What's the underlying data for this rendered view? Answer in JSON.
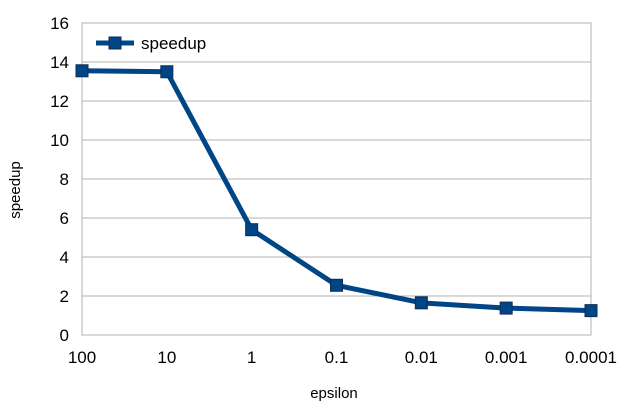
{
  "chart_data": {
    "type": "line",
    "title": "",
    "xlabel": "epsilon",
    "ylabel": "speedup",
    "categories": [
      "100",
      "10",
      "1",
      "0.1",
      "0.01",
      "0.001",
      "0.0001"
    ],
    "series": [
      {
        "name": "speedup",
        "values": [
          13.55,
          13.5,
          5.4,
          2.55,
          1.65,
          1.38,
          1.25
        ],
        "color": "#004586",
        "marker": "square"
      }
    ],
    "ylim": [
      0,
      16
    ],
    "yticks": [
      "0",
      "2",
      "4",
      "6",
      "8",
      "10",
      "12",
      "14",
      "16"
    ],
    "grid": true,
    "legend_position": "top-left"
  }
}
